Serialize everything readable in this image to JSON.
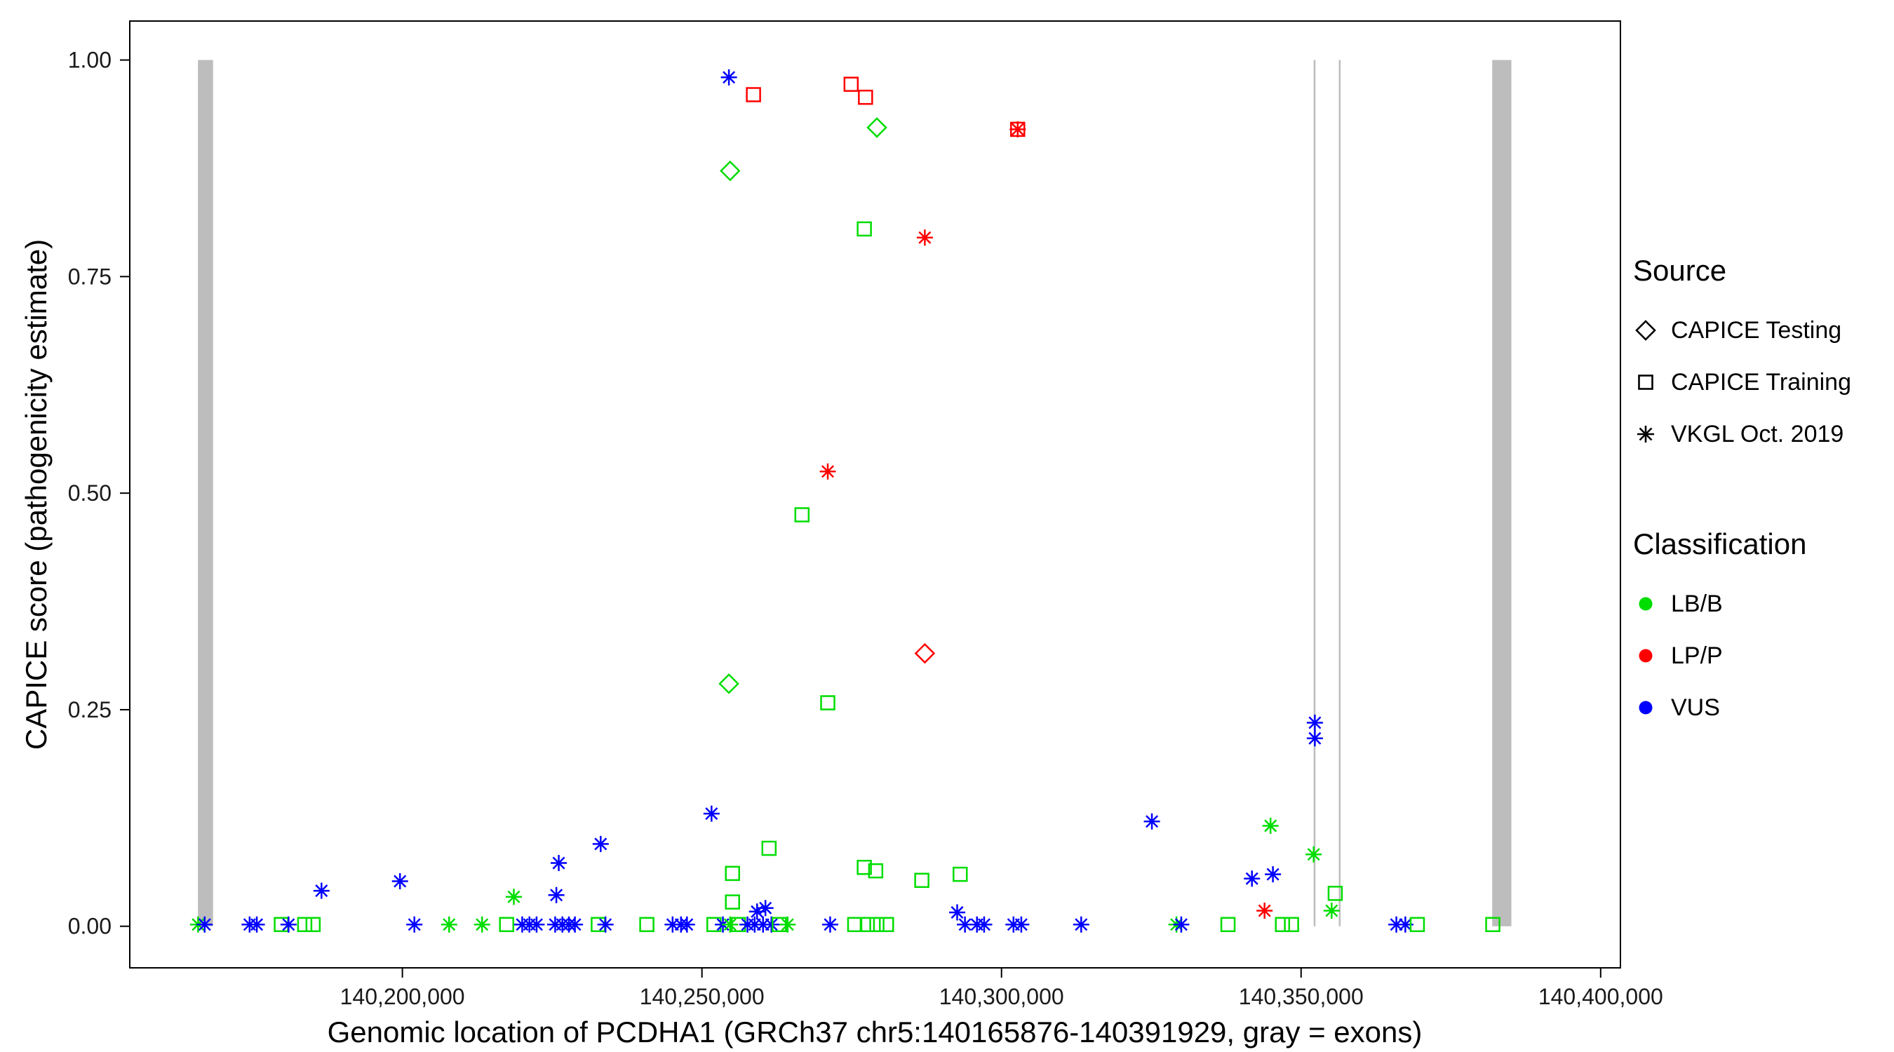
{
  "chart_data": {
    "type": "scatter",
    "title": "",
    "xlabel": "Genomic location of PCDHA1 (GRCh37 chr5:140165876-140391929, gray = exons)",
    "ylabel": "CAPICE score (pathogenicity estimate)",
    "grid": "off",
    "legend_position": "right",
    "x_axis": {
      "domain": [
        140154500,
        140403300
      ],
      "ticks": [
        140200000,
        140250000,
        140300000,
        140350000,
        140400000
      ],
      "tick_labels": [
        "140,200,000",
        "140,250,000",
        "140,300,000",
        "140,350,000",
        "140,400,000"
      ]
    },
    "y_axis": {
      "domain": [
        -0.048,
        1.045
      ],
      "ticks": [
        0,
        0.25,
        0.5,
        0.75,
        1
      ],
      "tick_labels": [
        "0.00",
        "0.25",
        "0.50",
        "0.75",
        "1.00"
      ]
    },
    "exon_color": "#BDBDBD",
    "exons": [
      [
        140165876,
        140168400
      ],
      [
        140352100,
        140352400
      ],
      [
        140356300,
        140356600
      ],
      [
        140381900,
        140385100
      ]
    ],
    "colors": {
      "LB/B": "#00DD00",
      "LP/P": "#FF0000",
      "VUS": "#0000FF"
    },
    "marker_by_source": {
      "testing": "diamond",
      "training": "square",
      "vkgl": "asterisk"
    },
    "legend": {
      "source": {
        "title": "Source",
        "items": [
          {
            "label": "CAPICE Testing",
            "marker": "diamond"
          },
          {
            "label": "CAPICE Training",
            "marker": "square"
          },
          {
            "label": "VKGL Oct. 2019",
            "marker": "asterisk"
          }
        ]
      },
      "classification": {
        "title": "Classification",
        "items": [
          {
            "label": "LB/B",
            "color": "#00DD00"
          },
          {
            "label": "LP/P",
            "color": "#FF0000"
          },
          {
            "label": "VUS",
            "color": "#0000FF"
          }
        ]
      }
    },
    "points": [
      [
        140254500,
        0.98,
        "vkgl",
        "VUS"
      ],
      [
        140258600,
        0.96,
        "training",
        "LP/P"
      ],
      [
        140274900,
        0.972,
        "training",
        "LP/P"
      ],
      [
        140277300,
        0.957,
        "training",
        "LP/P"
      ],
      [
        140279200,
        0.922,
        "testing",
        "LB/B"
      ],
      [
        140302700,
        0.92,
        "training",
        "LP/P"
      ],
      [
        140302700,
        0.92,
        "vkgl",
        "LP/P"
      ],
      [
        140254700,
        0.872,
        "testing",
        "LB/B"
      ],
      [
        140277100,
        0.805,
        "training",
        "LB/B"
      ],
      [
        140287200,
        0.795,
        "vkgl",
        "LP/P"
      ],
      [
        140271000,
        0.525,
        "vkgl",
        "LP/P"
      ],
      [
        140266700,
        0.475,
        "training",
        "LB/B"
      ],
      [
        140287200,
        0.315,
        "testing",
        "LP/P"
      ],
      [
        140254500,
        0.28,
        "testing",
        "LB/B"
      ],
      [
        140271000,
        0.258,
        "training",
        "LB/B"
      ],
      [
        140352300,
        0.235,
        "vkgl",
        "VUS"
      ],
      [
        140352300,
        0.217,
        "vkgl",
        "VUS"
      ],
      [
        140251600,
        0.13,
        "vkgl",
        "VUS"
      ],
      [
        140325100,
        0.121,
        "vkgl",
        "VUS"
      ],
      [
        140344900,
        0.116,
        "vkgl",
        "LB/B"
      ],
      [
        140233100,
        0.095,
        "vkgl",
        "VUS"
      ],
      [
        140261200,
        0.09,
        "training",
        "LB/B"
      ],
      [
        140352100,
        0.083,
        "vkgl",
        "LB/B"
      ],
      [
        140226100,
        0.073,
        "vkgl",
        "VUS"
      ],
      [
        140277100,
        0.068,
        "training",
        "LB/B"
      ],
      [
        140279000,
        0.064,
        "training",
        "LB/B"
      ],
      [
        140255100,
        0.061,
        "training",
        "LB/B"
      ],
      [
        140293100,
        0.06,
        "training",
        "LB/B"
      ],
      [
        140345300,
        0.06,
        "vkgl",
        "VUS"
      ],
      [
        140341800,
        0.055,
        "vkgl",
        "VUS"
      ],
      [
        140286700,
        0.053,
        "training",
        "LB/B"
      ],
      [
        140199600,
        0.052,
        "vkgl",
        "VUS"
      ],
      [
        140186500,
        0.041,
        "vkgl",
        "VUS"
      ],
      [
        140355700,
        0.038,
        "training",
        "LB/B"
      ],
      [
        140225700,
        0.036,
        "vkgl",
        "VUS"
      ],
      [
        140218600,
        0.034,
        "vkgl",
        "LB/B"
      ],
      [
        140255100,
        0.028,
        "training",
        "LB/B"
      ],
      [
        140260600,
        0.021,
        "vkgl",
        "VUS"
      ],
      [
        140259200,
        0.017,
        "vkgl",
        "VUS"
      ],
      [
        140343900,
        0.018,
        "vkgl",
        "LP/P"
      ],
      [
        140355100,
        0.018,
        "vkgl",
        "LB/B"
      ],
      [
        140292600,
        0.016,
        "vkgl",
        "VUS"
      ],
      [
        140165900,
        0.002,
        "vkgl",
        "LB/B"
      ],
      [
        140167000,
        0.002,
        "vkgl",
        "VUS"
      ],
      [
        140174500,
        0.002,
        "vkgl",
        "VUS"
      ],
      [
        140175700,
        0.002,
        "vkgl",
        "VUS"
      ],
      [
        140179800,
        0.002,
        "training",
        "LB/B"
      ],
      [
        140181000,
        0.002,
        "vkgl",
        "VUS"
      ],
      [
        140183700,
        0.002,
        "training",
        "LB/B"
      ],
      [
        140185100,
        0.002,
        "training",
        "LB/B"
      ],
      [
        140202000,
        0.002,
        "vkgl",
        "VUS"
      ],
      [
        140207800,
        0.002,
        "vkgl",
        "LB/B"
      ],
      [
        140213300,
        0.002,
        "vkgl",
        "LB/B"
      ],
      [
        140217400,
        0.002,
        "training",
        "LB/B"
      ],
      [
        140220000,
        0.002,
        "vkgl",
        "VUS"
      ],
      [
        140221200,
        0.002,
        "vkgl",
        "VUS"
      ],
      [
        140222400,
        0.002,
        "vkgl",
        "VUS"
      ],
      [
        140225500,
        0.002,
        "vkgl",
        "VUS"
      ],
      [
        140226700,
        0.002,
        "vkgl",
        "VUS"
      ],
      [
        140227800,
        0.002,
        "vkgl",
        "VUS"
      ],
      [
        140228800,
        0.002,
        "vkgl",
        "VUS"
      ],
      [
        140232700,
        0.002,
        "training",
        "LB/B"
      ],
      [
        140233900,
        0.002,
        "vkgl",
        "VUS"
      ],
      [
        140240800,
        0.002,
        "training",
        "LB/B"
      ],
      [
        140245100,
        0.002,
        "vkgl",
        "VUS"
      ],
      [
        140246500,
        0.002,
        "vkgl",
        "VUS"
      ],
      [
        140247500,
        0.002,
        "vkgl",
        "VUS"
      ],
      [
        140252000,
        0.002,
        "training",
        "LB/B"
      ],
      [
        140253500,
        0.002,
        "vkgl",
        "VUS"
      ],
      [
        140254700,
        0.002,
        "vkgl",
        "LB/B"
      ],
      [
        140256100,
        0.002,
        "training",
        "LB/B"
      ],
      [
        140257600,
        0.002,
        "vkgl",
        "VUS"
      ],
      [
        140258800,
        0.002,
        "vkgl",
        "VUS"
      ],
      [
        140260200,
        0.002,
        "vkgl",
        "VUS"
      ],
      [
        140261600,
        0.002,
        "vkgl",
        "VUS"
      ],
      [
        140262900,
        0.002,
        "training",
        "LB/B"
      ],
      [
        140264300,
        0.002,
        "vkgl",
        "LB/B"
      ],
      [
        140271400,
        0.002,
        "vkgl",
        "VUS"
      ],
      [
        140275500,
        0.002,
        "training",
        "LB/B"
      ],
      [
        140277600,
        0.002,
        "training",
        "LB/B"
      ],
      [
        140279200,
        0.002,
        "training",
        "LB/B"
      ],
      [
        140280800,
        0.002,
        "training",
        "LB/B"
      ],
      [
        140293900,
        0.002,
        "vkgl",
        "VUS"
      ],
      [
        140295900,
        0.002,
        "vkgl",
        "VUS"
      ],
      [
        140297100,
        0.002,
        "vkgl",
        "VUS"
      ],
      [
        140302000,
        0.002,
        "vkgl",
        "VUS"
      ],
      [
        140303300,
        0.002,
        "vkgl",
        "VUS"
      ],
      [
        140313300,
        0.002,
        "vkgl",
        "VUS"
      ],
      [
        140329200,
        0.002,
        "vkgl",
        "LB/B"
      ],
      [
        140330000,
        0.002,
        "vkgl",
        "VUS"
      ],
      [
        140337800,
        0.002,
        "training",
        "LB/B"
      ],
      [
        140346900,
        0.002,
        "training",
        "LB/B"
      ],
      [
        140348400,
        0.002,
        "training",
        "LB/B"
      ],
      [
        140365900,
        0.002,
        "vkgl",
        "VUS"
      ],
      [
        140367400,
        0.002,
        "vkgl",
        "VUS"
      ],
      [
        140369400,
        0.002,
        "training",
        "LB/B"
      ],
      [
        140382000,
        0.002,
        "training",
        "LB/B"
      ]
    ]
  }
}
